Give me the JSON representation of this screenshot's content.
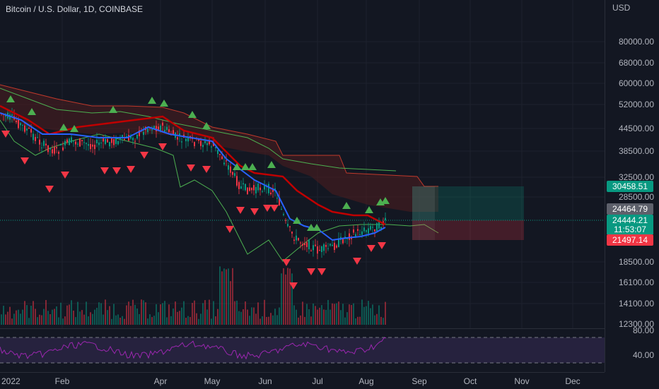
{
  "symbol": {
    "title": "Bitcoin / U.S. Dollar, 1D, COINBASE"
  },
  "price_axis": {
    "currency": "USD",
    "ticks": [
      "80000.00",
      "68000.00",
      "60000.00",
      "52000.00",
      "44500.00",
      "38500.00",
      "32500.00",
      "28500.00",
      "18500.00",
      "16100.00",
      "14100.00",
      "12300.00"
    ],
    "tags": {
      "target": "30458.51",
      "gray": "24464.79",
      "last_price": "24444.21",
      "countdown": "11:53:07",
      "stop": "21497.14"
    }
  },
  "rsi_axis": {
    "ticks": [
      "80.00",
      "40.00"
    ]
  },
  "time_axis": {
    "labels": [
      "2022",
      "Feb",
      "Apr",
      "May",
      "Jun",
      "Jul",
      "Aug",
      "Sep",
      "Oct",
      "Nov",
      "Dec"
    ]
  },
  "colors": {
    "background": "#131722",
    "up": "#089981",
    "down": "#f23645",
    "blue_line": "#2962ff",
    "red_line": "#c00000",
    "green_line": "#4caf50",
    "rsi": "#9c27b0",
    "cloud": "#4a1c1f"
  },
  "icons": {
    "buy_signal": "green-triangle-up-icon",
    "sell_signal": "red-triangle-down-icon"
  }
}
